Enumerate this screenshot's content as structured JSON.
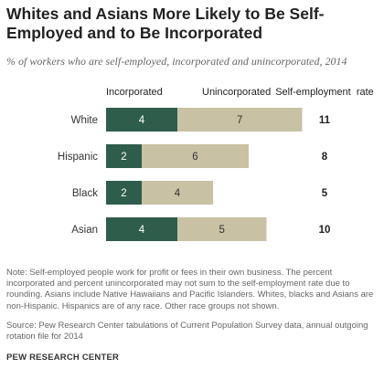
{
  "title": "Whites and Asians More Likely to Be Self-Employed and to Be Incorporated",
  "subtitle": "% of workers who are self-employed, incorporated and unincorporated, 2014",
  "note": "Note: Self-employed people work for profit or fees in their own business. The percent incorporated and percent unincorporated may not sum to the self-employment rate due to rounding. Asians include Native Hawaiians and Pacific Islanders. Whites, blacks and Asians are non-Hispanic. Hispanics are of any race. Other race groups not shown.",
  "source": "Source: Pew Research Center tabulations of Current Population Survey data, annual outgoing rotation file for 2014",
  "brand": "PEW RESEARCH CENTER",
  "chart_data": {
    "type": "bar",
    "orientation": "horizontal",
    "stacked": true,
    "categories": [
      "White",
      "Hispanic",
      "Black",
      "Asian"
    ],
    "series": [
      {
        "name": "Incorporated",
        "values": [
          4,
          2,
          2,
          4
        ],
        "color": "#2e5d4b",
        "label_color": "#ffffff"
      },
      {
        "name": "Unincorporated",
        "values": [
          7,
          6,
          4,
          5
        ],
        "color": "#c9c1a3",
        "label_color": "#333333"
      }
    ],
    "total": {
      "name": "Self-employment  rate",
      "values": [
        11,
        8,
        5,
        10
      ]
    },
    "legend": "top",
    "grid": false
  }
}
